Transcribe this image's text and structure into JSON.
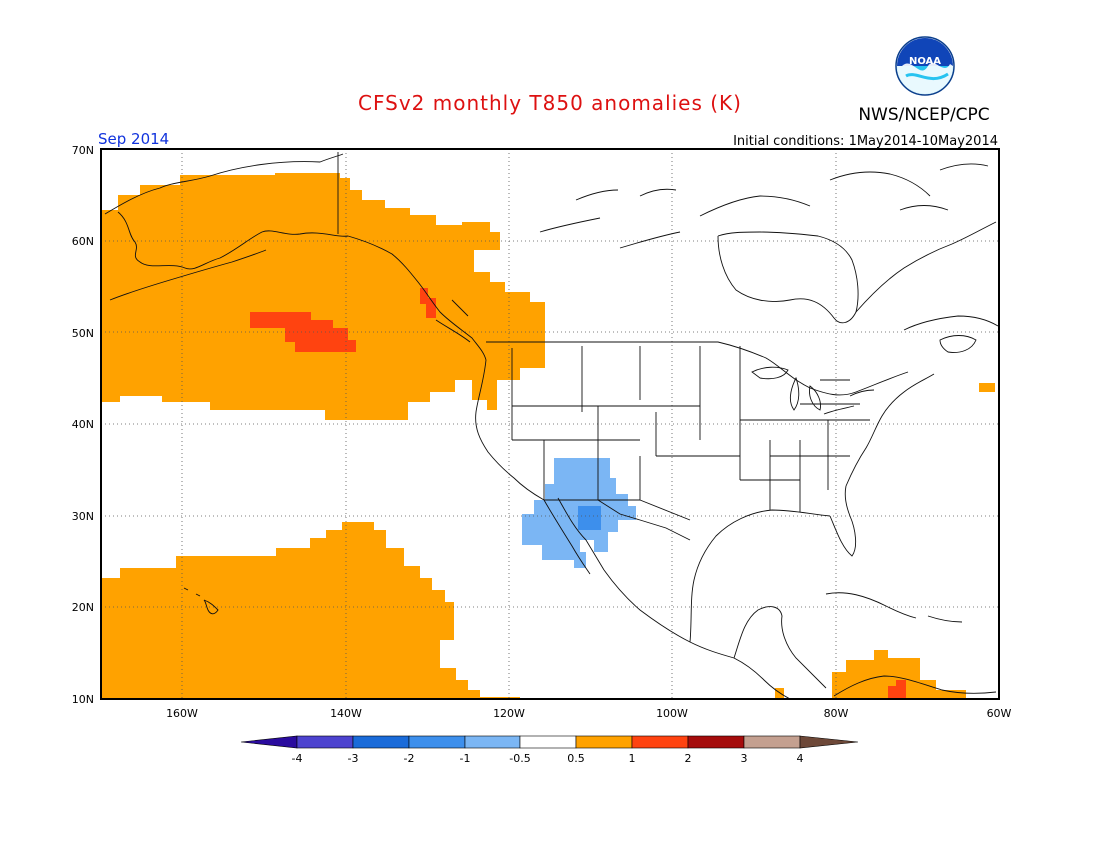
{
  "header": {
    "title": "CFSv2 monthly T850 anomalies (K)",
    "agency": "NWS/NCEP/CPC",
    "logo_text": "NOAA",
    "month": "Sep 2014",
    "initial_conditions": "Initial conditions: 1May2014-10May2014"
  },
  "map": {
    "projection": "cylindrical",
    "lon_range": [
      -170,
      -60
    ],
    "lat_range": [
      10,
      70
    ],
    "lat_ticks": [
      {
        "value": 70,
        "label": "70N"
      },
      {
        "value": 60,
        "label": "60N"
      },
      {
        "value": 50,
        "label": "50N"
      },
      {
        "value": 40,
        "label": "40N"
      },
      {
        "value": 30,
        "label": "30N"
      },
      {
        "value": 20,
        "label": "20N"
      },
      {
        "value": 10,
        "label": "10N"
      }
    ],
    "lon_ticks": [
      {
        "value": -160,
        "label": "160W"
      },
      {
        "value": -140,
        "label": "140W"
      },
      {
        "value": -120,
        "label": "120W"
      },
      {
        "value": -100,
        "label": "100W"
      },
      {
        "value": -80,
        "label": "80W"
      },
      {
        "value": -60,
        "label": "60W"
      }
    ]
  },
  "colorbar": {
    "labels": [
      "-4",
      "-3",
      "-2",
      "-1",
      "-0.5",
      "0.5",
      "1",
      "2",
      "3",
      "4"
    ],
    "colors": [
      "#2a0b9e",
      "#4d43cf",
      "#1a6bd9",
      "#3d8fec",
      "#7bb6f4",
      "#ffffff",
      "#ffa200",
      "#ff4310",
      "#a50c0c",
      "#c4a090",
      "#6d4838"
    ]
  },
  "anomaly_regions": [
    {
      "name": "NE Pacific / Alaska warm anomaly",
      "range": "0.5 to 1",
      "color": "#ffa200"
    },
    {
      "name": "Gulf of Alaska warm core",
      "range": "1 to 2",
      "color": "#ff4310"
    },
    {
      "name": "SE Alaska coast warm core",
      "range": "1 to 2",
      "color": "#ff4310"
    },
    {
      "name": "Subtropical Pacific warm anomaly",
      "range": "0.5 to 1",
      "color": "#ffa200"
    },
    {
      "name": "Desert Southwest / NW Mexico cool anomaly",
      "range": "-1 to -0.5",
      "color": "#7bb6f4"
    },
    {
      "name": "Sonora cool core",
      "range": "-2 to -1",
      "color": "#3d8fec"
    },
    {
      "name": "Northern South America warm anomaly",
      "range": "0.5 to 1",
      "color": "#ffa200"
    },
    {
      "name": "Central America warm spot",
      "range": "0.5 to 1",
      "color": "#ffa200"
    },
    {
      "name": "Venezuela warm core",
      "range": "1 to 2",
      "color": "#ff4310"
    },
    {
      "name": "North Atlantic warm spot",
      "range": "0.5 to 1",
      "color": "#ffa200"
    }
  ]
}
